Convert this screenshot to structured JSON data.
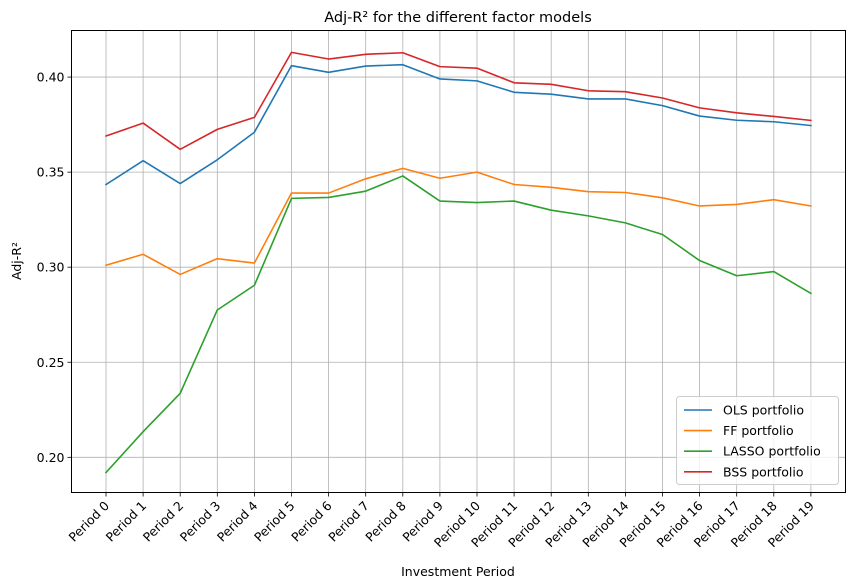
{
  "chart_data": {
    "type": "line",
    "title": "Adj-R² for the different factor models",
    "xlabel": "Investment Period",
    "ylabel": "Adj-R²",
    "categories": [
      "Period 0",
      "Period 1",
      "Period 2",
      "Period 3",
      "Period 4",
      "Period 5",
      "Period 6",
      "Period 7",
      "Period 8",
      "Period 9",
      "Period 10",
      "Period 11",
      "Period 12",
      "Period 13",
      "Period 14",
      "Period 15",
      "Period 16",
      "Period 17",
      "Period 18",
      "Period 19"
    ],
    "ylim": [
      0.1815,
      0.4245
    ],
    "yticks": [
      0.2,
      0.25,
      0.3,
      0.35,
      0.4
    ],
    "ytick_labels": [
      "0.20",
      "0.25",
      "0.30",
      "0.35",
      "0.40"
    ],
    "grid": true,
    "legend_position": "lower-right",
    "series": [
      {
        "name": "OLS portfolio",
        "color": "#1f77b4",
        "values": [
          0.3435,
          0.356,
          0.344,
          0.3565,
          0.371,
          0.406,
          0.4025,
          0.4058,
          0.4065,
          0.399,
          0.398,
          0.392,
          0.391,
          0.3885,
          0.3885,
          0.385,
          0.3795,
          0.3773,
          0.3765,
          0.3745
        ]
      },
      {
        "name": "FF portfolio",
        "color": "#ff7f0e",
        "values": [
          0.301,
          0.3068,
          0.2962,
          0.3045,
          0.3022,
          0.339,
          0.339,
          0.3465,
          0.352,
          0.3468,
          0.35,
          0.3435,
          0.342,
          0.3397,
          0.3393,
          0.3365,
          0.3322,
          0.333,
          0.3355,
          0.3322
        ]
      },
      {
        "name": "LASSO portfolio",
        "color": "#2ca02c",
        "values": [
          0.192,
          0.2135,
          0.2337,
          0.2775,
          0.2905,
          0.3362,
          0.3367,
          0.34,
          0.348,
          0.3348,
          0.334,
          0.3348,
          0.33,
          0.327,
          0.3233,
          0.3172,
          0.3035,
          0.2955,
          0.2977,
          0.2862
        ]
      },
      {
        "name": "BSS portfolio",
        "color": "#d62728",
        "values": [
          0.369,
          0.3758,
          0.362,
          0.3725,
          0.3788,
          0.413,
          0.4095,
          0.412,
          0.4128,
          0.4055,
          0.4047,
          0.397,
          0.3962,
          0.3928,
          0.3923,
          0.389,
          0.3838,
          0.3812,
          0.3793,
          0.3772
        ]
      }
    ]
  }
}
